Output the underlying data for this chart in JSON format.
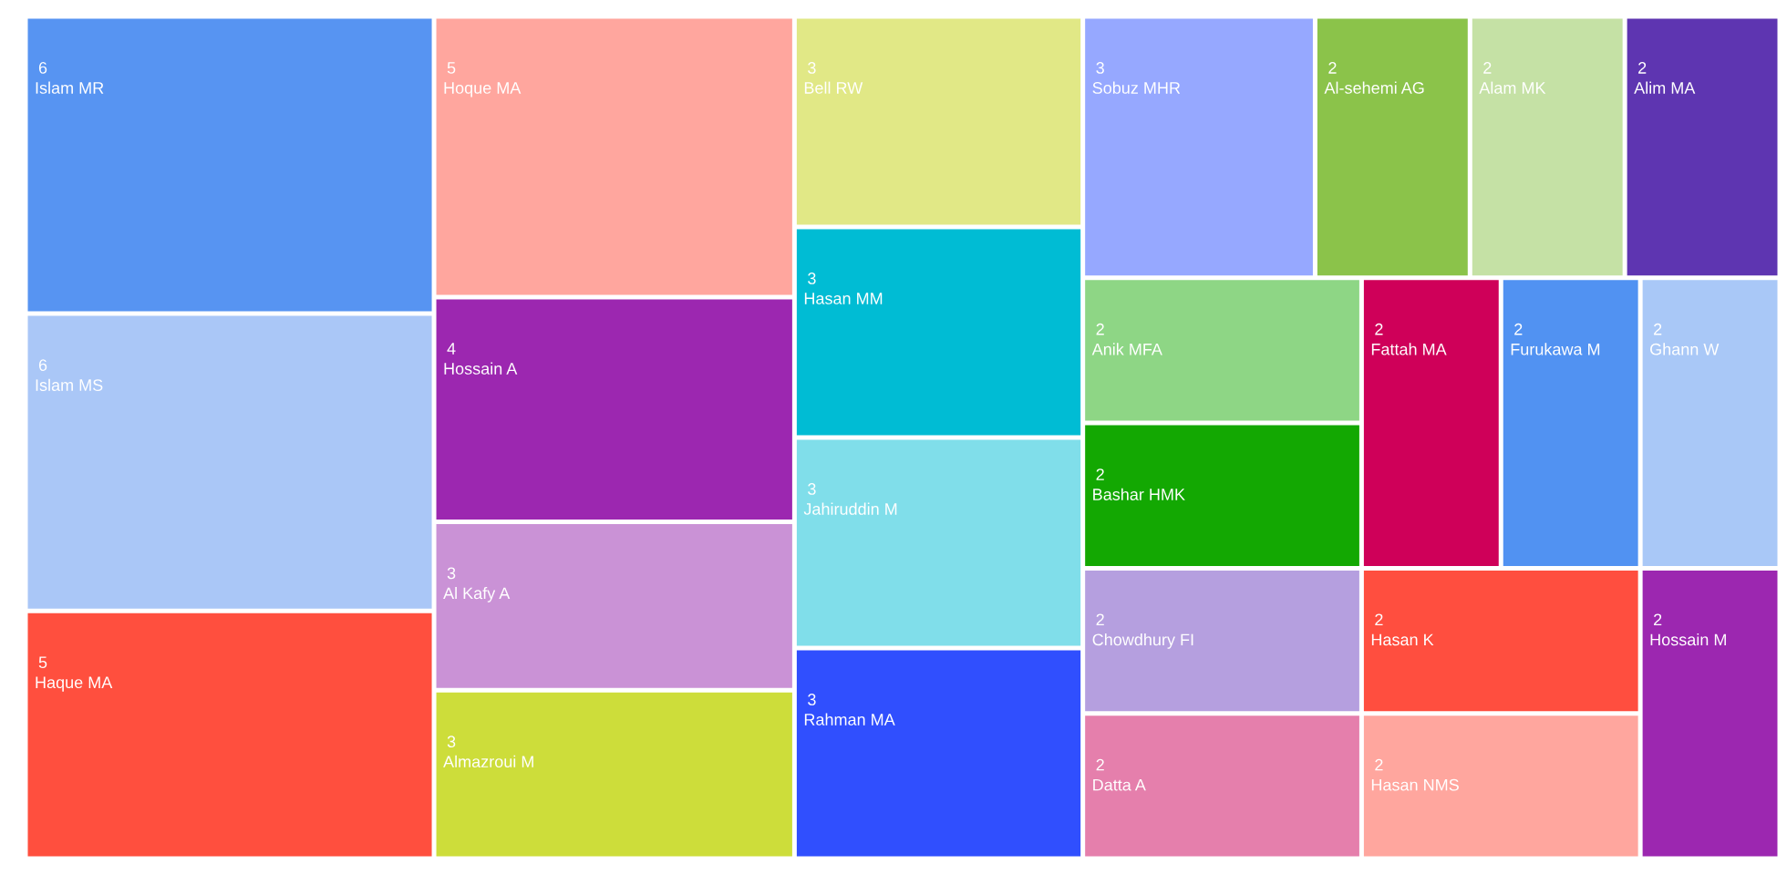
{
  "chart_data": {
    "type": "other",
    "data_labels": true,
    "categories": [
      "Islam MR",
      "Islam MS",
      "Haque MA",
      "Hoque MA",
      "Hossain A",
      "Al Kafy A",
      "Almazroui M",
      "Bell RW",
      "Hasan MM",
      "Jahiruddin M",
      "Rahman MA",
      "Sobuz MHR",
      "Al-sehemi AG",
      "Alam MK",
      "Alim MA",
      "Anik MFA",
      "Bashar HMK",
      "Chowdhury FI",
      "Datta A",
      "Fattah MA",
      "Furukawa M",
      "Ghann W",
      "Hasan K",
      "Hasan NMS",
      "Hossain M"
    ],
    "values": [
      6,
      6,
      5,
      5,
      4,
      3,
      3,
      3,
      3,
      3,
      3,
      3,
      2,
      2,
      2,
      2,
      2,
      2,
      2,
      2,
      2,
      2,
      2,
      2,
      2
    ],
    "colors": [
      "#5794f2",
      "#aac7f7",
      "#ff4f3e",
      "#ffa69e",
      "#9c27b0",
      "#ca92d6",
      "#cddd3a",
      "#e1e886",
      "#00bcd4",
      "#80deea",
      "#304ffe",
      "#96a8ff",
      "#8bc34a",
      "#c5e1a5",
      "#5e35b1",
      "#8ed685",
      "#13a802",
      "#b59fdf",
      "#e57fac",
      "#cf0059",
      "#5192f2",
      "#a9c8f7",
      "#ff4e3f",
      "#ffa69e",
      "#9c27b0"
    ]
  }
}
